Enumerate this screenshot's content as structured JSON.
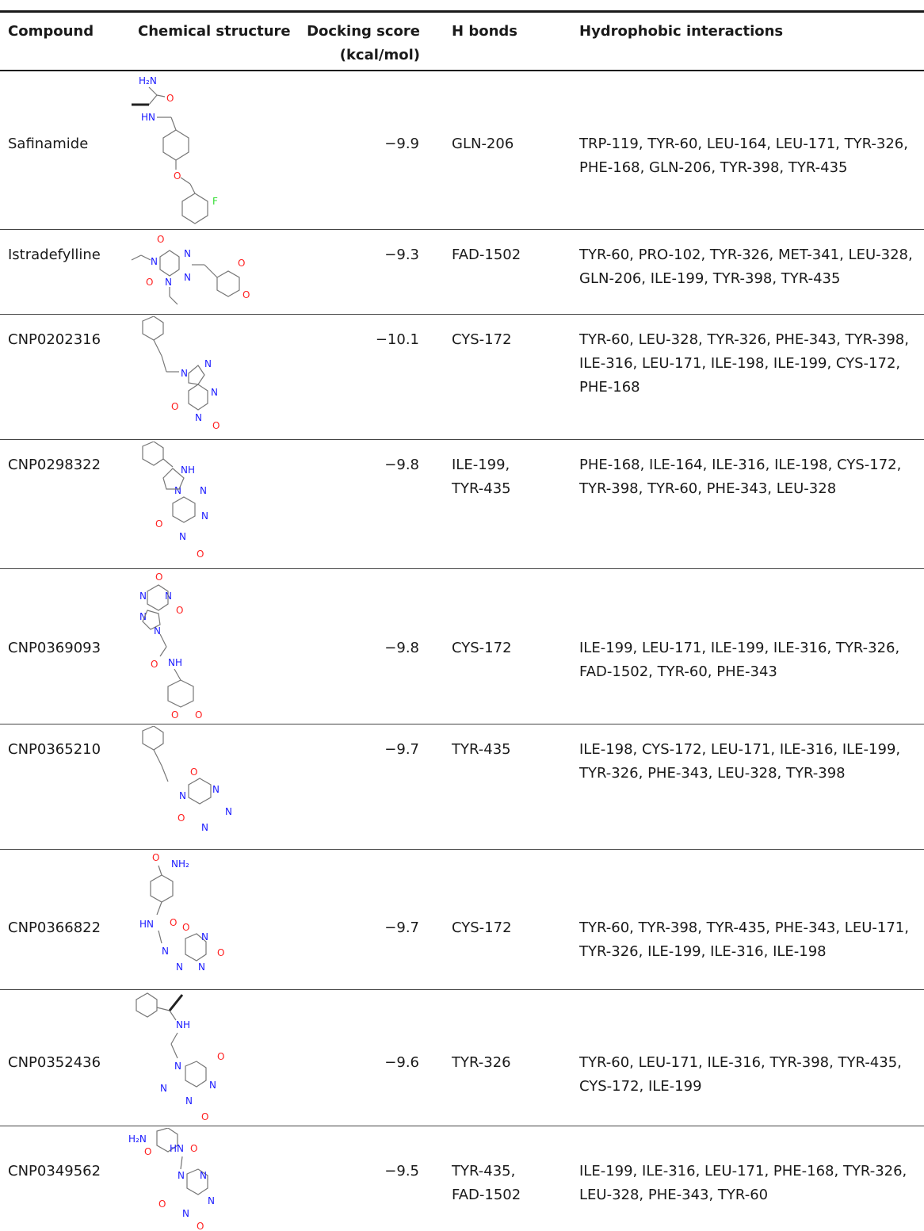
{
  "headers": {
    "compound": "Compound",
    "structure": "Chemical structure",
    "score_line1": "Docking score",
    "score_line2": "(kcal/mol)",
    "hbonds": "H bonds",
    "hydrophobic": "Hydrophobic interactions"
  },
  "rows": [
    {
      "compound": "Safinamide",
      "score": "−9.9",
      "hbonds": [
        "GLN-206"
      ],
      "hydrophobic": "TRP-119, TYR-60, LEU-164, LEU-171, TYR-326, PHE-168, GLN-206, TYR-398, TYR-435",
      "structure_labels": [
        "H₂N",
        "O",
        "HN",
        "O",
        "F"
      ]
    },
    {
      "compound": "Istradefylline",
      "score": "−9.3",
      "hbonds": [
        "FAD-1502"
      ],
      "hydrophobic": "TYR-60, PRO-102, TYR-326, MET-341, LEU-328, GLN-206, ILE-199, TYR-398, TYR-435",
      "structure_labels": [
        "O",
        "N",
        "N",
        "O",
        "N",
        "N",
        "O",
        "O"
      ]
    },
    {
      "compound": "CNP0202316",
      "score": "−10.1",
      "hbonds": [
        "CYS-172"
      ],
      "hydrophobic": "TYR-60, LEU-328, TYR-326, PHE-343, TYR-398, ILE-316, LEU-171, ILE-198, ILE-199, CYS-172, PHE-168",
      "structure_labels": [
        "N",
        "N",
        "N",
        "O",
        "N",
        "O"
      ]
    },
    {
      "compound": "CNP0298322",
      "score": "−9.8",
      "hbonds": [
        "ILE-199,",
        "TYR-435"
      ],
      "hydrophobic": "PHE-168, ILE-164, ILE-316, ILE-198, CYS-172, TYR-398, TYR-60, PHE-343, LEU-328",
      "structure_labels": [
        "NH",
        "N",
        "N",
        "N",
        "O",
        "N",
        "O"
      ]
    },
    {
      "compound": "CNP0369093",
      "score": "−9.8",
      "hbonds": [
        "CYS-172"
      ],
      "hydrophobic": "ILE-199, LEU-171, ILE-199, ILE-316, TYR-326, FAD-1502, TYR-60, PHE-343",
      "structure_labels": [
        "O",
        "N",
        "N",
        "O",
        "N",
        "N",
        "O",
        "NH",
        "O",
        "O"
      ]
    },
    {
      "compound": "CNP0365210",
      "score": "−9.7",
      "hbonds": [
        "TYR-435"
      ],
      "hydrophobic": "ILE-198, CYS-172, LEU-171, ILE-316, ILE-199, TYR-326, PHE-343, LEU-328, TYR-398",
      "structure_labels": [
        "O",
        "N",
        "N",
        "N",
        "O",
        "N"
      ]
    },
    {
      "compound": "CNP0366822",
      "score": "−9.7",
      "hbonds": [
        "CYS-172"
      ],
      "hydrophobic": "TYR-60, TYR-398, TYR-435, PHE-343, LEU-171, TYR-326, ILE-199, ILE-316, ILE-198",
      "structure_labels": [
        "O",
        "NH₂",
        "HN",
        "O",
        "O",
        "N",
        "N",
        "O",
        "N",
        "N"
      ]
    },
    {
      "compound": "CNP0352436",
      "score": "−9.6",
      "hbonds": [
        "TYR-326"
      ],
      "hydrophobic": "TYR-60, LEU-171, ILE-316, TYR-398, TYR-435, CYS-172, ILE-199",
      "structure_labels": [
        "NH",
        "N",
        "O",
        "N",
        "N",
        "N",
        "O"
      ]
    },
    {
      "compound": "CNP0349562",
      "score": "−9.5",
      "hbonds": [
        "TYR-435,",
        "FAD-1502"
      ],
      "hydrophobic": "ILE-199, ILE-316, LEU-171, PHE-168, TYR-326, LEU-328, PHE-343, TYR-60",
      "structure_labels": [
        "H₂N",
        "O",
        "HN",
        "O",
        "N",
        "N",
        "N",
        "O",
        "N",
        "O"
      ]
    }
  ]
}
